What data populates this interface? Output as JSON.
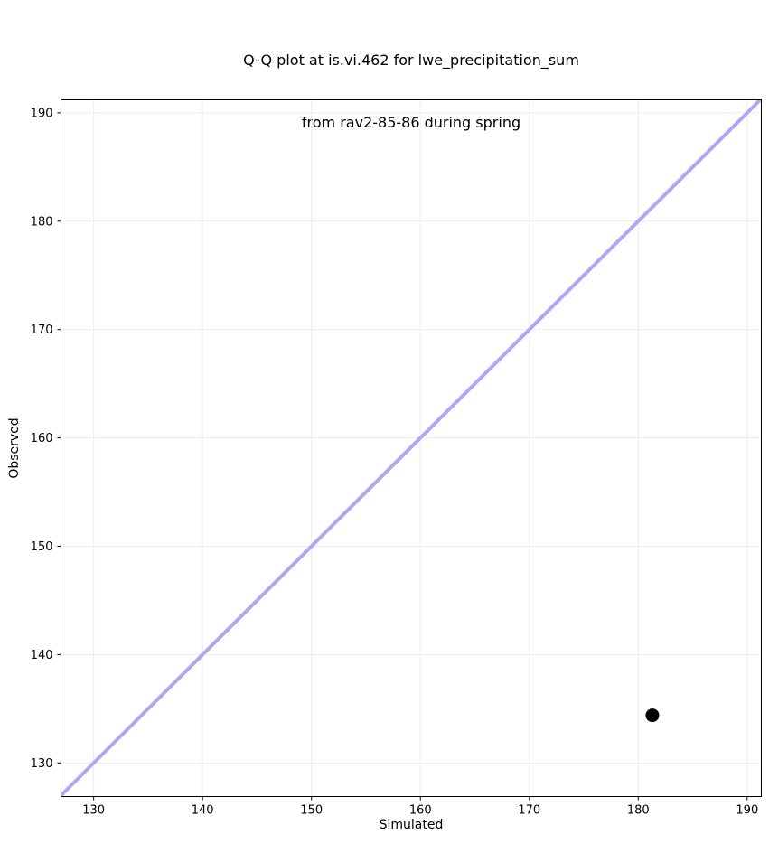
{
  "chart_data": {
    "type": "scatter",
    "title_line1": "Q-Q plot at is.vi.462 for lwe_precipitation_sum",
    "title_line2": "from rav2-85-86 during spring",
    "xlabel": "Simulated",
    "ylabel": "Observed",
    "xlim": [
      127.0,
      191.3
    ],
    "ylim": [
      126.9,
      191.2
    ],
    "xticks": [
      130,
      140,
      150,
      160,
      170,
      180,
      190
    ],
    "yticks": [
      130,
      140,
      150,
      160,
      170,
      180,
      190
    ],
    "grid": true,
    "legend": "none",
    "points": [
      {
        "x": 181.3,
        "y": 134.4
      }
    ],
    "reference_line": {
      "kind": "identity y = x",
      "x0": 126.9,
      "y0": 126.9,
      "x1": 191.3,
      "y1": 191.3
    },
    "colors": {
      "reference_line": "#a9aaf2",
      "point": "#000000",
      "grid": "#ececec",
      "axis": "#000000",
      "background": "#ffffff"
    },
    "style": {
      "reference_line_width": 4,
      "point_radius": 7.5,
      "tick_length": 4
    }
  }
}
